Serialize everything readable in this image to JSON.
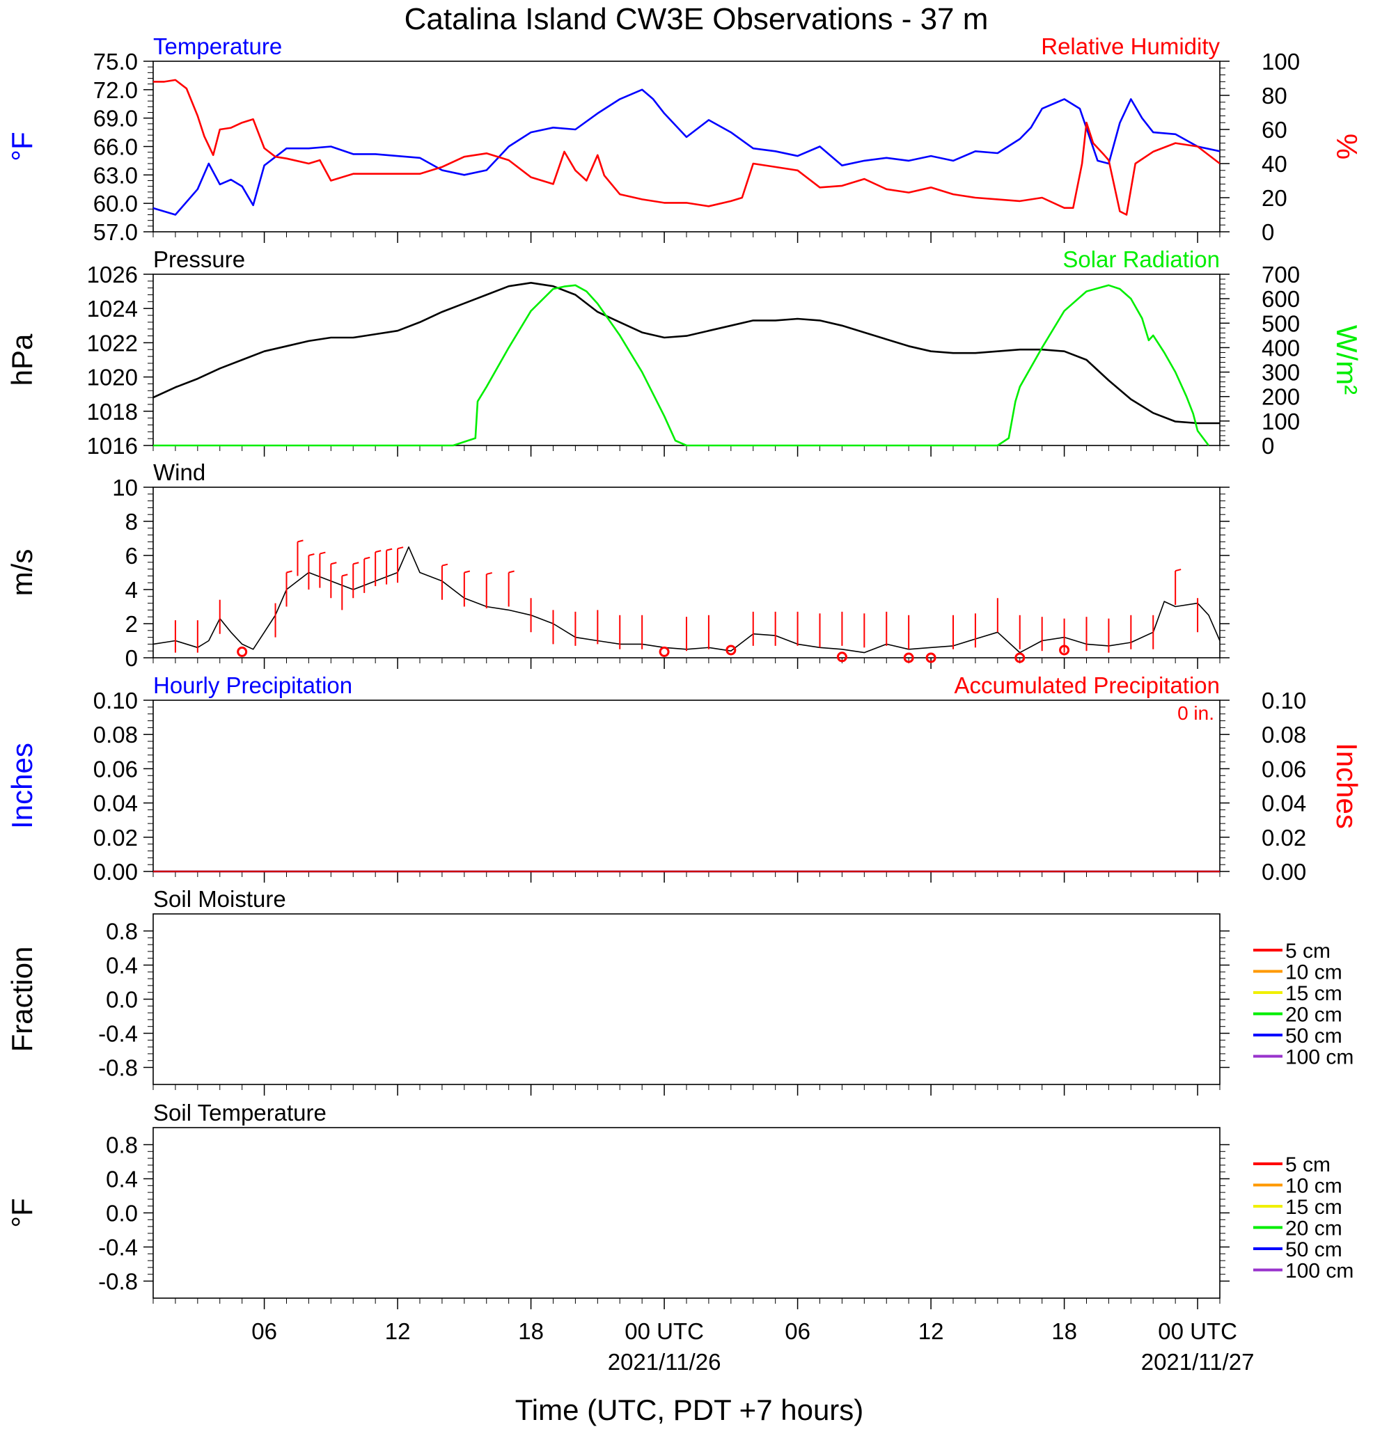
{
  "title": "Catalina Island CW3E Observations - 37 m",
  "x_axis": {
    "title": "Time (UTC, PDT +7 hours)",
    "range_hours": [
      0,
      48
    ],
    "ticks": [
      {
        "h": 5,
        "label": "06",
        "date": ""
      },
      {
        "h": 11,
        "label": "12",
        "date": ""
      },
      {
        "h": 17,
        "label": "18",
        "date": ""
      },
      {
        "h": 23,
        "label": "00 UTC",
        "date": "2021/11/26"
      },
      {
        "h": 29,
        "label": "06",
        "date": ""
      },
      {
        "h": 35,
        "label": "12",
        "date": ""
      },
      {
        "h": 41,
        "label": "18",
        "date": ""
      },
      {
        "h": 47,
        "label": "00 UTC",
        "date": "2021/11/27"
      }
    ]
  },
  "colors": {
    "temperature": "#0000ff",
    "humidity": "#ff0000",
    "pressure": "#000000",
    "solar": "#00ee00",
    "wind": "#000000",
    "gust": "#ff0000",
    "precip_hourly": "#0000ff",
    "precip_accum": "#cc0000"
  },
  "legend_soil": [
    {
      "label": "5 cm",
      "color": "#ff0000"
    },
    {
      "label": "10 cm",
      "color": "#ff9900"
    },
    {
      "label": "15 cm",
      "color": "#f0f000"
    },
    {
      "label": "20 cm",
      "color": "#00ee00"
    },
    {
      "label": "50 cm",
      "color": "#0000ff"
    },
    {
      "label": "100 cm",
      "color": "#9933cc"
    }
  ],
  "chart_data": [
    {
      "type": "line",
      "panel": "temperature_humidity",
      "title_left": "Temperature",
      "title_right": "Relative Humidity",
      "ylabel_left": "°F",
      "ylabel_right": "%",
      "ylim_left": [
        57,
        75
      ],
      "ylim_right": [
        0,
        100
      ],
      "yticks_left": [
        "57.0",
        "60.0",
        "63.0",
        "66.0",
        "69.0",
        "72.0",
        "75.0"
      ],
      "yticks_right": [
        "0",
        "20",
        "40",
        "60",
        "80",
        "100"
      ],
      "series": [
        {
          "name": "Temperature",
          "axis": "left",
          "x": [
            0,
            1,
            2,
            2.5,
            3,
            3.5,
            4,
            4.5,
            5,
            6,
            7,
            8,
            9,
            10,
            12,
            13,
            14,
            15,
            16,
            17,
            18,
            19,
            20,
            21,
            22,
            22.5,
            23,
            24,
            25,
            26,
            27,
            28,
            29,
            30,
            31,
            32,
            33,
            34,
            35,
            36,
            37,
            38,
            39,
            39.5,
            40,
            41,
            41.7,
            42.5,
            43,
            43.5,
            44,
            44.5,
            45,
            46,
            47,
            48
          ],
          "y": [
            59.5,
            58.8,
            61.5,
            64.2,
            62.0,
            62.5,
            61.8,
            59.8,
            64.0,
            65.8,
            65.8,
            66.0,
            65.2,
            65.2,
            64.8,
            63.5,
            63.0,
            63.5,
            66.0,
            67.5,
            68.0,
            67.8,
            69.5,
            71.0,
            72.0,
            71.0,
            69.5,
            67.0,
            68.8,
            67.5,
            65.8,
            65.5,
            65.0,
            66.0,
            64.0,
            64.5,
            64.8,
            64.5,
            65.0,
            64.5,
            65.5,
            65.3,
            66.8,
            68.0,
            70.0,
            71.0,
            70.0,
            64.5,
            64.2,
            68.5,
            71.0,
            69.0,
            67.5,
            67.3,
            66.0,
            65.5
          ]
        },
        {
          "name": "Relative Humidity",
          "axis": "right",
          "x": [
            0,
            0.5,
            1,
            1.5,
            2,
            2.3,
            2.7,
            3,
            3.5,
            4,
            4.5,
            5,
            5.5,
            6,
            7,
            7.5,
            8,
            9,
            10,
            12,
            13,
            14,
            15,
            16,
            17,
            18,
            18.5,
            19,
            19.5,
            20,
            20.3,
            21,
            22,
            23,
            24,
            25,
            26,
            26.5,
            27,
            28,
            29,
            30,
            31,
            32,
            33,
            34,
            35,
            36,
            37,
            38,
            39,
            40,
            41,
            41.2,
            41.4,
            41.8,
            42,
            42.3,
            42.8,
            43,
            43.5,
            43.8,
            44.2,
            45,
            46,
            47,
            48
          ],
          "y": [
            88,
            88,
            89,
            84,
            68,
            56,
            45,
            60,
            61,
            64,
            66,
            49,
            44,
            43,
            40,
            42,
            30,
            34,
            34,
            34,
            38,
            44,
            46,
            42,
            32,
            28,
            47,
            36,
            30,
            45,
            33,
            22,
            19,
            17,
            17,
            15,
            18,
            20,
            40,
            38,
            36,
            26,
            27,
            31,
            25,
            23,
            26,
            22,
            20,
            19,
            18,
            20,
            14,
            14,
            14,
            40,
            64,
            52,
            45,
            42,
            12,
            10,
            40,
            47,
            52,
            50,
            40
          ]
        }
      ]
    },
    {
      "type": "line",
      "panel": "pressure_solar",
      "title_left": "Pressure",
      "title_right": "Solar Radiation",
      "ylabel_left": "hPa",
      "ylabel_right": "W/m²",
      "ylim_left": [
        1016,
        1026
      ],
      "ylim_right": [
        0,
        700
      ],
      "yticks_left": [
        "1016",
        "1018",
        "1020",
        "1022",
        "1024",
        "1026"
      ],
      "yticks_right": [
        "0",
        "100",
        "200",
        "300",
        "400",
        "500",
        "600",
        "700"
      ],
      "series": [
        {
          "name": "Pressure",
          "axis": "left",
          "x": [
            0,
            1,
            2,
            3,
            4,
            5,
            6,
            7,
            8,
            9,
            10,
            11,
            12,
            13,
            14,
            15,
            16,
            17,
            18,
            19,
            20,
            21,
            22,
            23,
            24,
            25,
            26,
            27,
            28,
            29,
            30,
            31,
            32,
            33,
            34,
            35,
            36,
            37,
            38,
            39,
            40,
            41,
            42,
            43,
            44,
            45,
            46,
            47,
            48
          ],
          "y": [
            1018.8,
            1019.4,
            1019.9,
            1020.5,
            1021.0,
            1021.5,
            1021.8,
            1022.1,
            1022.3,
            1022.3,
            1022.5,
            1022.7,
            1023.2,
            1023.8,
            1024.3,
            1024.8,
            1025.3,
            1025.5,
            1025.3,
            1024.8,
            1023.8,
            1023.2,
            1022.6,
            1022.3,
            1022.4,
            1022.7,
            1023.0,
            1023.3,
            1023.3,
            1023.4,
            1023.3,
            1023.0,
            1022.6,
            1022.2,
            1021.8,
            1021.5,
            1021.4,
            1021.4,
            1021.5,
            1021.6,
            1021.6,
            1021.5,
            1021.0,
            1019.8,
            1018.7,
            1017.9,
            1017.4,
            1017.3,
            1017.3
          ]
        },
        {
          "name": "Solar Radiation",
          "axis": "right",
          "x": [
            0,
            13.5,
            14.5,
            14.6,
            15,
            16,
            17,
            18,
            18.5,
            19,
            19.5,
            20,
            21,
            22,
            23,
            23.5,
            24,
            38,
            38.5,
            38.8,
            39,
            40,
            41,
            42,
            43,
            43.5,
            44,
            44.5,
            44.8,
            45,
            45.5,
            46,
            46.5,
            46.8,
            47,
            47.5
          ],
          "y": [
            0,
            0,
            30,
            180,
            240,
            400,
            550,
            640,
            650,
            655,
            630,
            580,
            450,
            300,
            120,
            20,
            0,
            0,
            30,
            180,
            240,
            400,
            550,
            630,
            655,
            640,
            600,
            520,
            430,
            450,
            380,
            300,
            200,
            130,
            60,
            0
          ]
        }
      ]
    },
    {
      "type": "line",
      "panel": "wind",
      "title_left": "Wind",
      "ylabel_left": "m/s",
      "ylim_left": [
        0,
        10
      ],
      "yticks_left": [
        "0",
        "2",
        "4",
        "6",
        "8",
        "10"
      ],
      "series": [
        {
          "name": "",
          "axis": "left",
          "x": [
            0,
            1,
            2,
            2.5,
            3,
            3.5,
            4,
            4.5,
            5,
            5.5,
            6,
            7,
            8,
            9,
            10,
            11,
            11.5,
            12,
            13,
            14,
            15,
            16,
            17,
            18,
            19,
            20,
            21,
            22,
            23,
            24,
            25,
            26,
            27,
            28,
            29,
            30,
            31,
            32,
            33,
            34,
            35,
            36,
            37,
            38,
            39,
            40,
            41,
            42,
            43,
            44,
            45,
            45.5,
            46,
            47,
            47.5,
            48
          ],
          "y": [
            0.8,
            1.0,
            0.6,
            1.0,
            2.3,
            1.5,
            0.8,
            0.5,
            1.5,
            2.5,
            4.0,
            5.0,
            4.5,
            4.0,
            4.5,
            5.0,
            6.5,
            5.0,
            4.5,
            3.5,
            3.0,
            2.8,
            2.5,
            2.0,
            1.2,
            1.0,
            0.8,
            0.8,
            0.6,
            0.5,
            0.6,
            0.4,
            1.4,
            1.3,
            0.8,
            0.6,
            0.5,
            0.3,
            0.8,
            0.5,
            0.6,
            0.7,
            1.1,
            1.5,
            0.3,
            1.0,
            1.2,
            0.8,
            0.7,
            0.9,
            1.5,
            3.3,
            3.0,
            3.2,
            2.5,
            1.0
          ]
        }
      ],
      "gusts": {
        "x": [
          1,
          2,
          3,
          5.5,
          6,
          6.5,
          7,
          7.5,
          8,
          8.5,
          9,
          9.5,
          10,
          10.5,
          11,
          13,
          14,
          15,
          16,
          17,
          18,
          19,
          20,
          21,
          22,
          24,
          25,
          27,
          28,
          29,
          30,
          31,
          32,
          33,
          34,
          36,
          37,
          38,
          39,
          40,
          41,
          42,
          43,
          44,
          45,
          46,
          47
        ],
        "y": [
          2.2,
          2.2,
          3.4,
          3.2,
          5.0,
          6.8,
          6.0,
          6.1,
          5.5,
          4.8,
          5.5,
          5.8,
          6.2,
          6.3,
          6.4,
          5.4,
          5.0,
          4.9,
          5.0,
          3.5,
          2.8,
          2.7,
          2.8,
          2.5,
          2.5,
          2.4,
          2.5,
          2.7,
          2.7,
          2.7,
          2.6,
          2.7,
          2.6,
          2.7,
          2.5,
          2.5,
          2.6,
          3.5,
          2.5,
          2.4,
          2.3,
          2.4,
          2.3,
          2.5,
          2.5,
          5.1,
          3.5
        ]
      },
      "calm": {
        "x": [
          4,
          23,
          26,
          31,
          34,
          35,
          39,
          41
        ],
        "y": [
          0.35,
          0.35,
          0.45,
          0.05,
          0.0,
          0.0,
          0.0,
          0.45
        ]
      }
    },
    {
      "type": "line",
      "panel": "precipitation",
      "title_left": "Hourly Precipitation",
      "title_right": "Accumulated Precipitation",
      "annotation": "0 in.",
      "ylabel_left": "Inches",
      "ylabel_right": "Inches",
      "ylim_left": [
        0,
        0.1
      ],
      "ylim_right": [
        0,
        0.1
      ],
      "yticks_left": [
        "0.00",
        "0.02",
        "0.04",
        "0.06",
        "0.08",
        "0.10"
      ],
      "yticks_right": [
        "0.00",
        "0.02",
        "0.04",
        "0.06",
        "0.08",
        "0.10"
      ],
      "series": [
        {
          "name": "Hourly Precipitation",
          "axis": "left",
          "x": [
            0,
            48
          ],
          "y": [
            0,
            0
          ]
        },
        {
          "name": "Accumulated Precipitation",
          "axis": "right",
          "x": [
            0,
            48
          ],
          "y": [
            0,
            0
          ]
        }
      ]
    },
    {
      "type": "line",
      "panel": "soil_moisture",
      "title_left": "Soil Moisture",
      "ylabel_left": "Fraction",
      "ylim_left": [
        -1,
        1
      ],
      "yticks_left": [
        "-0.8",
        "-0.4",
        "0.0",
        "0.4",
        "0.8"
      ],
      "series": []
    },
    {
      "type": "line",
      "panel": "soil_temperature",
      "title_left": "Soil Temperature",
      "ylabel_left": "°F",
      "ylim_left": [
        -1,
        1
      ],
      "yticks_left": [
        "-0.8",
        "-0.4",
        "0.0",
        "0.4",
        "0.8"
      ],
      "series": []
    }
  ]
}
